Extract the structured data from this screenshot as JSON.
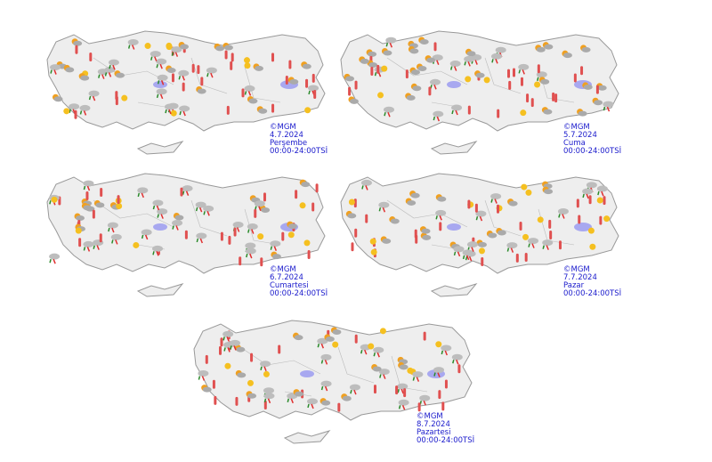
{
  "panels": [
    {
      "copyright": "©MGM",
      "date": "4.7.2024",
      "day": "Perşembe",
      "time": "00:00-24:00TSİ"
    },
    {
      "copyright": "©MGM",
      "date": "5.7.2024",
      "day": "Cuma",
      "time": "00:00-24:00TSİ"
    },
    {
      "copyright": "©MGM",
      "date": "6.7.2024",
      "day": "Cumartesi",
      "time": "00:00-24:00TSİ"
    },
    {
      "copyright": "©MGM",
      "date": "7.7.2024",
      "day": "Pazar",
      "time": "00:00-24:00TSİ"
    },
    {
      "copyright": "©MGM",
      "date": "8.7.2024",
      "day": "Pazartesi",
      "time": "00:00-24:00TSİ"
    }
  ]
}
